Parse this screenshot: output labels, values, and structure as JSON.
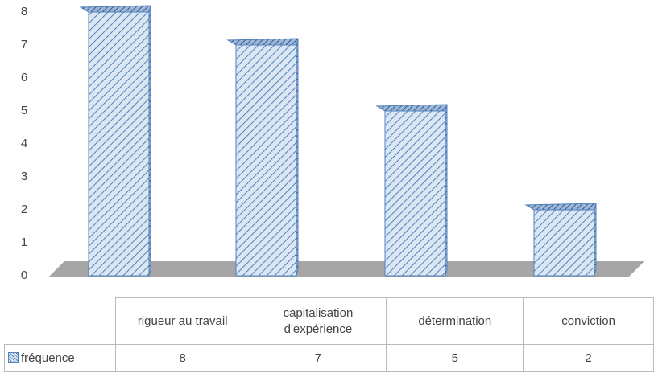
{
  "chart_data": {
    "type": "bar3d",
    "categories": [
      "rigueur au travail",
      "capitalisation d'expérience",
      "détermination",
      "conviction"
    ],
    "series": [
      {
        "name": "fréquence",
        "color": "#4f81bd",
        "values": [
          8,
          7,
          5,
          2
        ]
      }
    ],
    "ylim": [
      0,
      8
    ],
    "yticks": [
      0,
      1,
      2,
      3,
      4,
      5,
      6,
      7,
      8
    ],
    "grid": false
  }
}
